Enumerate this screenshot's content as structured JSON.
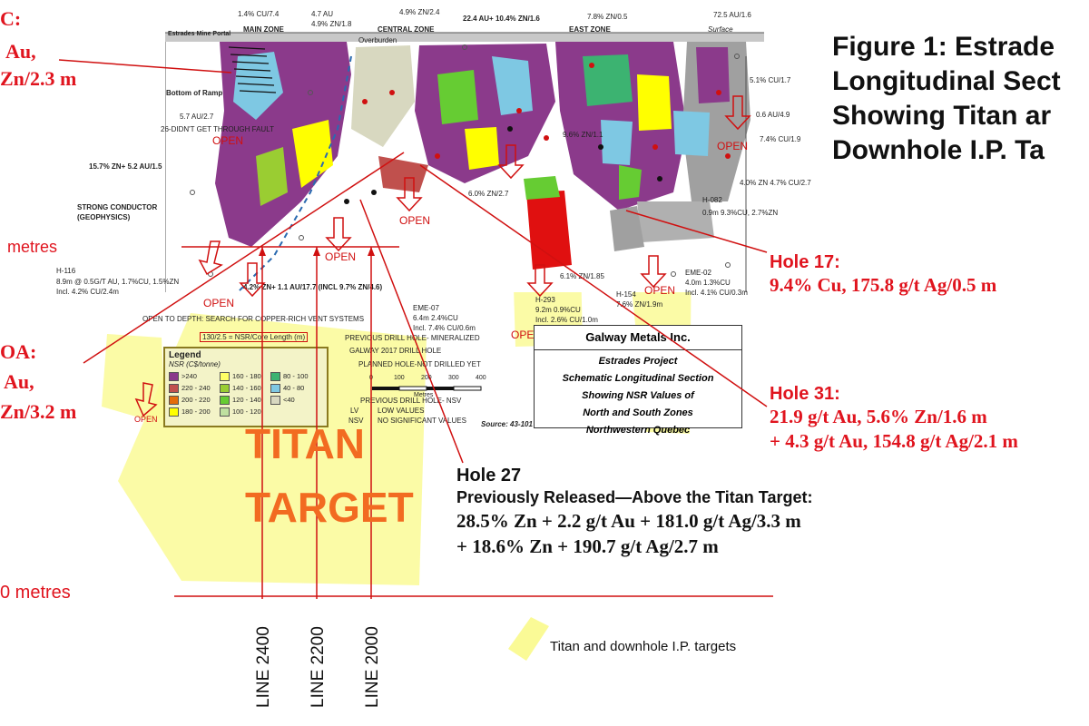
{
  "figure_title": [
    "Figure 1: Estrade",
    "Longitudinal Sect",
    "Showing Titan ar",
    "Downhole I.P. Ta"
  ],
  "left_cut_labels": {
    "c": "C:",
    "au1": "Au,",
    "zn1": "Zn/2.3 m",
    "metres1": "metres",
    "oa": "OA:",
    "au2": "Au,",
    "zn2": "Zn/3.2 m",
    "metres2": "0 metres"
  },
  "zones": {
    "main": "MAIN ZONE",
    "central": "CENTRAL ZONE",
    "east": "EAST ZONE",
    "surface": "Surface",
    "portal": "Estrades Mine Portal",
    "overburden": "Overburden",
    "ramp": "Bottom of Ramp"
  },
  "top_labels": {
    "a": "1.4% CU/7.4",
    "b": "4.7 AU",
    "b2": "4.9% ZN/1.8",
    "c": "4.9% ZN/2.4",
    "d": "22.4 AU+ 10.4% ZN/1.6",
    "e": "7.8% ZN/0.5",
    "f": "72.5 AU/1.6"
  },
  "section_labels": {
    "au57": "5.7 AU/2.7",
    "fault": "26-DIDN'T GET THROUGH FAULT",
    "zn157": "15.7% ZN+ 5.2 AU/1.5",
    "conductor1": "STRONG CONDUCTOR",
    "conductor2": "(GEOPHYSICS)",
    "h116": "H-116",
    "h116a": "8.9m @ 0.5G/T AU, 1.7%CU, 1.5%ZN",
    "h116b": "Incl. 4.2% CU/2.4m",
    "zn42": "4.2% ZN+ 1.1 AU/17.7 (INCL 9.7% ZN/4.6)",
    "opendepth": "OPEN TO DEPTH: SEARCH FOR COPPER-RICH VENT SYSTEMS",
    "eme07a": "EME-07",
    "eme07b": "6.4m 2.4%CU",
    "eme07c": "Incl. 7.4% CU/0.6m",
    "zn96": "9.6% ZN/1.1",
    "zn60": "6.0% ZN/2.7",
    "zn61": "6.1% ZN/1.85",
    "h293a": "H-293",
    "h293b": "9.2m 0.9%CU",
    "h293c": "Incl. 2.6% CU/1.0m",
    "h154a": "H-154",
    "h154b": "7.6% ZN/1.9m",
    "eme02a": "EME-02",
    "eme02b": "4.0m 1.3%CU",
    "eme02c": "Incl. 4.1% CU/0.3m",
    "h082a": "H-082",
    "h082b": "0.9m 9.3%CU, 2.7%ZN",
    "cu51": "5.1% CU/1.7",
    "au06": "0.6 AU/4.9",
    "cu74": "7.4% CU/1.9",
    "zn40": "4.0% ZN 4.7% CU/2.7",
    "mineral": "PREVIOUS DRILL HOLE- MINERALIZED",
    "galway2017": "GALWAY 2017 DRILL HOLE",
    "planned": "PLANNED HOLE-NOT DRILLED YET",
    "nsv1": "PREVIOUS DRILL HOLE- NSV",
    "lowv": "LOW VALUES",
    "nosig": "NO SIGNIFICANT VALUES",
    "lv": "LV",
    "nsv": "NSV",
    "source": "Source: 43-101",
    "metres": "Metres",
    "nsr_note": "130/2.5 = NSR/Core Length (m)"
  },
  "open_labels": [
    "OPEN",
    "OPEN",
    "OPEN",
    "OPEN",
    "OPEN",
    "OPEN",
    "OPEN",
    "OPEN",
    "OPEN"
  ],
  "scale_ticks": [
    "0",
    "100",
    "200",
    "300",
    "400"
  ],
  "legend": {
    "title": "Legend",
    "nsr": "NSR (C$/tonne)",
    "items": [
      {
        "label": ">240",
        "color": "#8b3a8b"
      },
      {
        "label": "220 - 240",
        "color": "#c0504d"
      },
      {
        "label": "200 - 220",
        "color": "#e46c0a"
      },
      {
        "label": "180 - 200",
        "color": "#ffff00"
      },
      {
        "label": "160 - 180",
        "color": "#ffff66"
      },
      {
        "label": "140 - 160",
        "color": "#9acd32"
      },
      {
        "label": "120 - 140",
        "color": "#66cc33"
      },
      {
        "label": "100 - 120",
        "color": "#bfe0a0"
      },
      {
        "label": "80 - 100",
        "color": "#3cb371"
      },
      {
        "label": "40 - 80",
        "color": "#7ec8e3"
      },
      {
        "label": "<40",
        "color": "#d8d8c0"
      }
    ]
  },
  "galway": {
    "company": "Galway Metals Inc.",
    "l1": "Estrades Project",
    "l2": "Schematic Longitudinal Section",
    "l3": "Showing NSR Values of",
    "l4": "North and South Zones",
    "l5": "Northwestern Quebec"
  },
  "titan": [
    "TITAN",
    "TARGET"
  ],
  "hole17": {
    "title": "Hole 17:",
    "line": "9.4% Cu, 175.8 g/t Ag/0.5 m"
  },
  "hole31": {
    "title": "Hole 31:",
    "l1": "21.9 g/t Au, 5.6% Zn/1.6 m",
    "l2": "+ 4.3 g/t Au, 154.8 g/t Ag/2.1 m"
  },
  "hole27": {
    "title": "Hole 27",
    "sub": "Previously Released—Above the Titan Target:",
    "l1": "28.5% Zn + 2.2 g/t Au + 181.0 g/t Ag/3.3 m",
    "l2": "+ 18.6% Zn + 190.7 g/t Ag/2.7 m"
  },
  "lines": [
    "LINE 2400",
    "LINE 2200",
    "LINE 2000"
  ],
  "legend_targets": "Titan and downhole I.P. targets",
  "colors": {
    "accent_red": "#e0141e",
    "target_yellow": "#fafa96",
    "titan_orange": "#f26b21"
  }
}
